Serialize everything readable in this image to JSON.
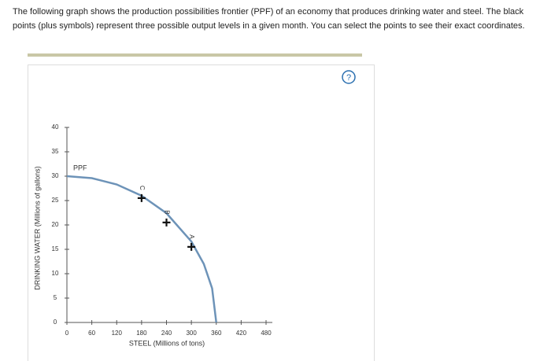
{
  "instructions": "The following graph shows the production possibilities frontier (PPF) of an economy that produces drinking water and steel. The black points (plus symbols) represent three possible output levels in a given month. You can select the points to see their exact coordinates.",
  "help": "?",
  "chart_data": {
    "type": "line",
    "x_label": "STEEL (Millions of tons)",
    "y_label": "DRINKING WATER (Millions of gallons)",
    "xlim": [
      0,
      480
    ],
    "xticks": [
      0,
      60,
      120,
      180,
      240,
      300,
      360,
      420,
      480
    ],
    "ylim": [
      0,
      40
    ],
    "yticks": [
      0,
      5,
      10,
      15,
      20,
      25,
      30,
      35,
      40
    ],
    "series": [
      {
        "name": "PPF",
        "color": "#6d93b8",
        "x": [
          0,
          60,
          120,
          180,
          240,
          300,
          330,
          350,
          360
        ],
        "values": [
          30,
          29.6,
          28.3,
          26,
          22.4,
          16.6,
          12,
          7,
          0
        ]
      },
      {
        "color": "#111111",
        "labels": [
          "C",
          "B",
          "A"
        ],
        "x": [
          180,
          240,
          300
        ],
        "values": [
          25.5,
          20.5,
          15.5
        ]
      }
    ]
  }
}
